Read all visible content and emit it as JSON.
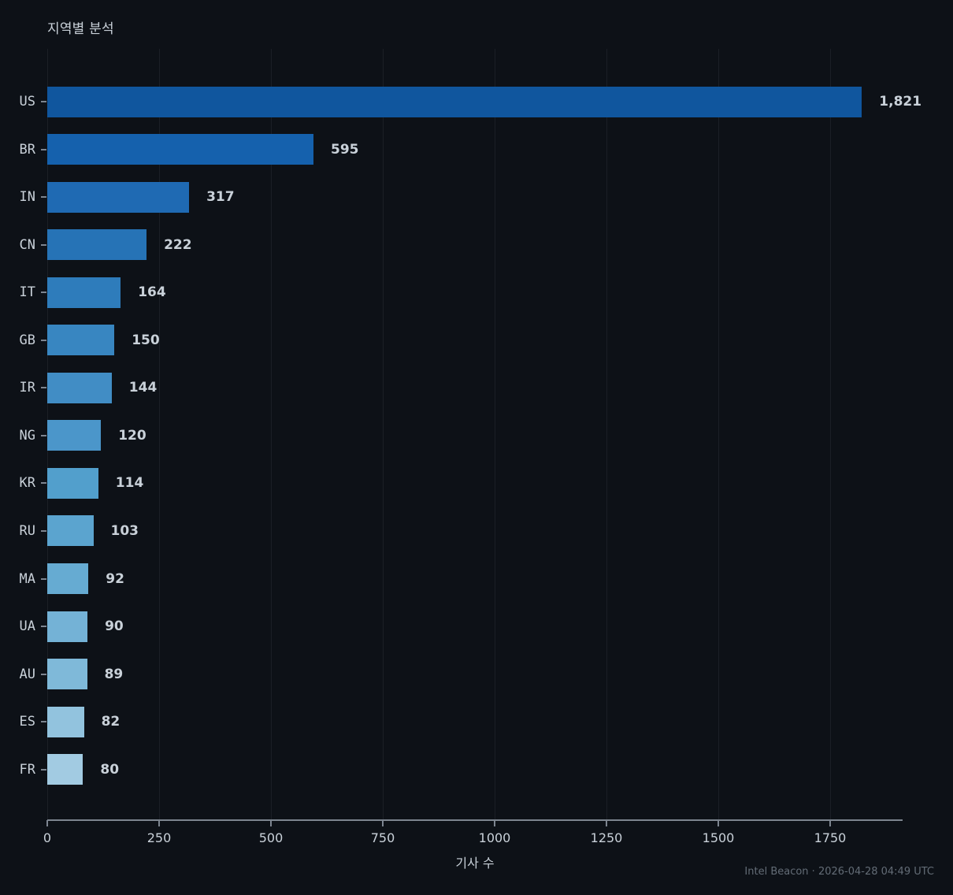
{
  "chart_data": {
    "type": "bar",
    "orientation": "horizontal",
    "title": "지역별 분석",
    "xlabel": "기사 수",
    "categories": [
      "US",
      "BR",
      "IN",
      "CN",
      "IT",
      "GB",
      "IR",
      "NG",
      "KR",
      "RU",
      "MA",
      "UA",
      "AU",
      "ES",
      "FR"
    ],
    "values": [
      1821,
      595,
      317,
      222,
      164,
      150,
      144,
      120,
      114,
      103,
      92,
      90,
      89,
      82,
      80
    ],
    "value_labels": [
      "1,821",
      "595",
      "317",
      "222",
      "164",
      "150",
      "144",
      "120",
      "114",
      "103",
      "92",
      "90",
      "89",
      "82",
      "80"
    ],
    "bar_colors": [
      "#10569e",
      "#1561ad",
      "#1f6ab3",
      "#2673b6",
      "#2e7cbb",
      "#3886c1",
      "#418dc5",
      "#4b96ca",
      "#529fcc",
      "#5ba4cf",
      "#66abd2",
      "#74b2d6",
      "#7fb9d9",
      "#92c3de",
      "#a2cbe2"
    ],
    "x_ticks": [
      0,
      250,
      500,
      750,
      1000,
      1250,
      1500,
      1750
    ],
    "x_tick_labels": [
      "0",
      "250",
      "500",
      "750",
      "1000",
      "1250",
      "1500",
      "1750"
    ],
    "xlim": [
      0,
      1912
    ],
    "grid": "vertical-gridlines",
    "legend": "none"
  },
  "footer": "Intel Beacon · 2026-04-28 04:49 UTC",
  "colors": {
    "background": "#0d1117",
    "text": "#c9d1d9",
    "axis": "#7d8590",
    "footer_text": "#636c76"
  }
}
